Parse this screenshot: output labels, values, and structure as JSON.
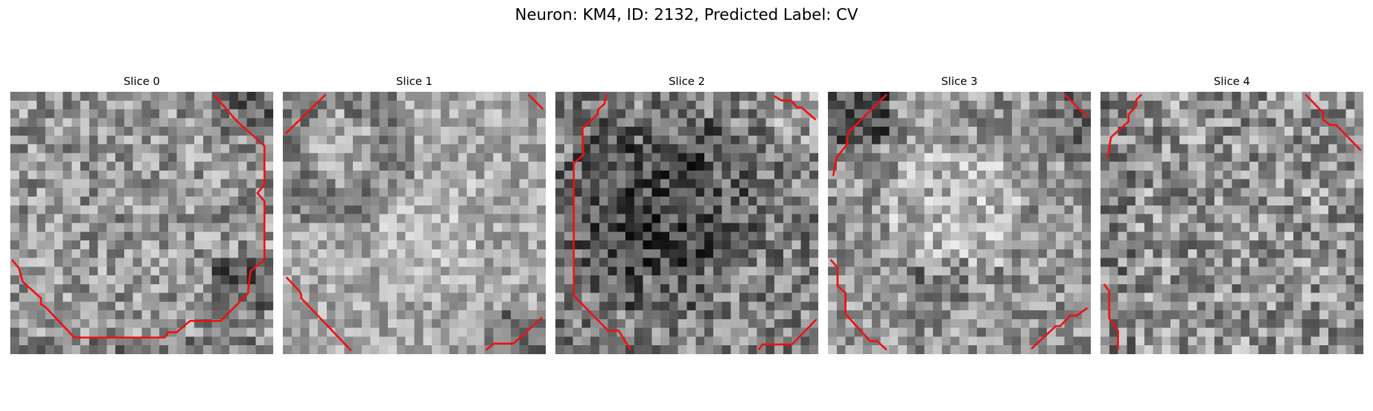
{
  "figure": {
    "title": "Neuron: KM4, ID: 2132, Predicted Label: CV"
  },
  "panels": [
    {
      "title": "Slice 0",
      "seed": 11,
      "base": 150,
      "spread": 105
    },
    {
      "title": "Slice 1",
      "seed": 23,
      "base": 168,
      "spread": 80
    },
    {
      "title": "Slice 2",
      "seed": 37,
      "base": 118,
      "spread": 112
    },
    {
      "title": "Slice 3",
      "seed": 41,
      "base": 148,
      "spread": 98
    },
    {
      "title": "Slice 4",
      "seed": 59,
      "base": 148,
      "spread": 118
    }
  ],
  "colors": {
    "contour": "#ee1111",
    "background": "#ffffff"
  }
}
